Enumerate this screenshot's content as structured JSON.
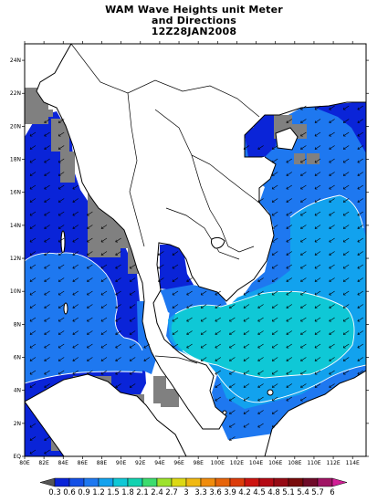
{
  "title": {
    "line1": "WAM Wave Heights unit Meter",
    "line2": "and Directions",
    "line3": "12Z28JAN2008"
  },
  "axes": {
    "x_ticks": [
      "80E",
      "82E",
      "84E",
      "86E",
      "88E",
      "90E",
      "92E",
      "94E",
      "96E",
      "98E",
      "100E",
      "102E",
      "104E",
      "106E",
      "108E",
      "110E",
      "112E",
      "114E"
    ],
    "y_ticks": [
      "EQ",
      "2N",
      "4N",
      "6N",
      "8N",
      "10N",
      "12N",
      "14N",
      "16N",
      "18N",
      "20N",
      "22N",
      "24N"
    ]
  },
  "colorbar": {
    "labels": [
      "0.3",
      "0.6",
      "0.9",
      "1.2",
      "1.5",
      "1.8",
      "2.1",
      "2.4",
      "2.7",
      "3",
      "3.3",
      "3.6",
      "3.9",
      "4.2",
      "4.5",
      "4.8",
      "5.1",
      "5.4",
      "5.7",
      "6"
    ],
    "colors": [
      "#555555",
      "#0a24d8",
      "#1450e6",
      "#1e78f0",
      "#12a2ee",
      "#0fc8d6",
      "#12d2b0",
      "#3cdc6e",
      "#9ce22c",
      "#dcd814",
      "#f0b812",
      "#f08c0c",
      "#e6640a",
      "#dc3c0a",
      "#cc1410",
      "#b40a14",
      "#960a14",
      "#780a0a",
      "#6e0a28",
      "#a01464",
      "#d21e96"
    ],
    "min": 0.3,
    "max": 6
  },
  "colors": {
    "land": "#ffffff",
    "no_data": "#808080",
    "wave_0_6_0_9": "#0a24d8",
    "wave_0_9_1_2": "#1450e6",
    "wave_1_2_1_5": "#1e78f0",
    "wave_1_5_1_8": "#12a2ee",
    "wave_1_8_2_1": "#0fc8d6",
    "coastline": "#000000",
    "contour": "#ffffff"
  }
}
